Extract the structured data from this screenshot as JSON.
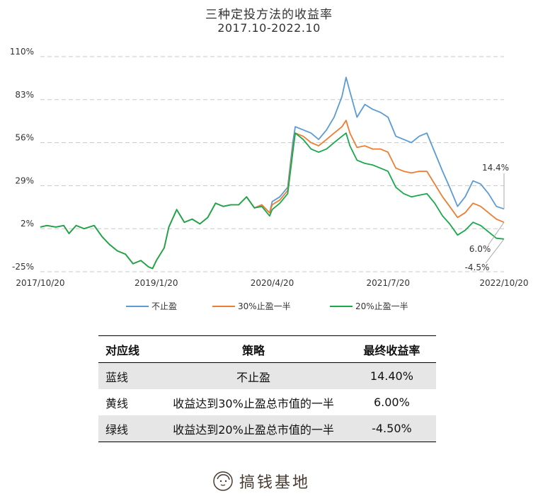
{
  "title": "三种定投方法的收益率",
  "subtitle": "2017.10-2022.10",
  "chart_data": {
    "type": "line",
    "ylim": [
      -25,
      110
    ],
    "yticks": [
      "110%",
      "83%",
      "56%",
      "29%",
      "2%",
      "-25%"
    ],
    "ytick_values": [
      110,
      83,
      56,
      29,
      2,
      -25
    ],
    "xticks": [
      "2017/10/20",
      "2019/1/20",
      "2020/4/20",
      "2021/7/20",
      "2022/10/20"
    ],
    "x_range": [
      "2017-10-20",
      "2022-10-20"
    ],
    "grid": "horizontal dashed",
    "legend_position": "bottom",
    "series": [
      {
        "name": "不止盈",
        "color": "#5b9bd5",
        "points": [
          [
            "2017-10-20",
            3
          ],
          [
            "2017-11-15",
            4
          ],
          [
            "2017-12-20",
            3
          ],
          [
            "2018-01-20",
            4
          ],
          [
            "2018-02-10",
            -1
          ],
          [
            "2018-03-10",
            4
          ],
          [
            "2018-04-10",
            2
          ],
          [
            "2018-05-20",
            4
          ],
          [
            "2018-06-20",
            -3
          ],
          [
            "2018-07-20",
            -8
          ],
          [
            "2018-08-20",
            -12
          ],
          [
            "2018-09-20",
            -14
          ],
          [
            "2018-10-20",
            -20
          ],
          [
            "2018-11-20",
            -18
          ],
          [
            "2018-12-20",
            -22
          ],
          [
            "2019-01-05",
            -23
          ],
          [
            "2019-01-20",
            -18
          ],
          [
            "2019-02-20",
            -10
          ],
          [
            "2019-03-10",
            3
          ],
          [
            "2019-04-10",
            14
          ],
          [
            "2019-05-10",
            6
          ],
          [
            "2019-06-10",
            8
          ],
          [
            "2019-07-10",
            5
          ],
          [
            "2019-08-10",
            9
          ],
          [
            "2019-09-10",
            18
          ],
          [
            "2019-10-10",
            16
          ],
          [
            "2019-11-10",
            17
          ],
          [
            "2019-12-10",
            17
          ],
          [
            "2020-01-10",
            22
          ],
          [
            "2020-02-10",
            15
          ],
          [
            "2020-03-10",
            17
          ],
          [
            "2020-04-10",
            12
          ],
          [
            "2020-04-20",
            19
          ],
          [
            "2020-05-20",
            22
          ],
          [
            "2020-06-20",
            28
          ],
          [
            "2020-07-10",
            56
          ],
          [
            "2020-07-20",
            66
          ],
          [
            "2020-08-20",
            64
          ],
          [
            "2020-09-20",
            62
          ],
          [
            "2020-10-20",
            58
          ],
          [
            "2020-11-20",
            64
          ],
          [
            "2020-12-20",
            72
          ],
          [
            "2021-01-20",
            85
          ],
          [
            "2021-02-05",
            97
          ],
          [
            "2021-02-20",
            88
          ],
          [
            "2021-03-20",
            72
          ],
          [
            "2021-04-20",
            80
          ],
          [
            "2021-05-20",
            77
          ],
          [
            "2021-06-20",
            75
          ],
          [
            "2021-07-20",
            72
          ],
          [
            "2021-08-20",
            60
          ],
          [
            "2021-09-20",
            58
          ],
          [
            "2021-10-20",
            56
          ],
          [
            "2021-11-20",
            60
          ],
          [
            "2021-12-20",
            62
          ],
          [
            "2022-01-20",
            50
          ],
          [
            "2022-02-20",
            38
          ],
          [
            "2022-03-20",
            28
          ],
          [
            "2022-04-20",
            16
          ],
          [
            "2022-05-20",
            22
          ],
          [
            "2022-06-20",
            32
          ],
          [
            "2022-07-20",
            30
          ],
          [
            "2022-08-20",
            24
          ],
          [
            "2022-09-20",
            16
          ],
          [
            "2022-10-20",
            14.4
          ]
        ]
      },
      {
        "name": "30%止盈一半",
        "color": "#ed7d31",
        "points": [
          [
            "2017-10-20",
            3
          ],
          [
            "2017-11-15",
            4
          ],
          [
            "2017-12-20",
            3
          ],
          [
            "2018-01-20",
            4
          ],
          [
            "2018-02-10",
            -1
          ],
          [
            "2018-03-10",
            4
          ],
          [
            "2018-04-10",
            2
          ],
          [
            "2018-05-20",
            4
          ],
          [
            "2018-06-20",
            -3
          ],
          [
            "2018-07-20",
            -8
          ],
          [
            "2018-08-20",
            -12
          ],
          [
            "2018-09-20",
            -14
          ],
          [
            "2018-10-20",
            -20
          ],
          [
            "2018-11-20",
            -18
          ],
          [
            "2018-12-20",
            -22
          ],
          [
            "2019-01-05",
            -23
          ],
          [
            "2019-01-20",
            -18
          ],
          [
            "2019-02-20",
            -10
          ],
          [
            "2019-03-10",
            3
          ],
          [
            "2019-04-10",
            14
          ],
          [
            "2019-05-10",
            6
          ],
          [
            "2019-06-10",
            8
          ],
          [
            "2019-07-10",
            5
          ],
          [
            "2019-08-10",
            9
          ],
          [
            "2019-09-10",
            18
          ],
          [
            "2019-10-10",
            16
          ],
          [
            "2019-11-10",
            17
          ],
          [
            "2019-12-10",
            17
          ],
          [
            "2020-01-10",
            22
          ],
          [
            "2020-02-10",
            15
          ],
          [
            "2020-03-10",
            17
          ],
          [
            "2020-04-10",
            12
          ],
          [
            "2020-04-20",
            17
          ],
          [
            "2020-05-20",
            20
          ],
          [
            "2020-06-20",
            26
          ],
          [
            "2020-07-10",
            52
          ],
          [
            "2020-07-20",
            62
          ],
          [
            "2020-08-20",
            60
          ],
          [
            "2020-09-20",
            56
          ],
          [
            "2020-10-20",
            54
          ],
          [
            "2020-11-20",
            58
          ],
          [
            "2020-12-20",
            62
          ],
          [
            "2021-01-20",
            66
          ],
          [
            "2021-02-05",
            70
          ],
          [
            "2021-02-20",
            62
          ],
          [
            "2021-03-20",
            53
          ],
          [
            "2021-04-20",
            54
          ],
          [
            "2021-05-20",
            52
          ],
          [
            "2021-06-20",
            52
          ],
          [
            "2021-07-20",
            50
          ],
          [
            "2021-08-20",
            40
          ],
          [
            "2021-09-20",
            38
          ],
          [
            "2021-10-20",
            37
          ],
          [
            "2021-11-20",
            38
          ],
          [
            "2021-12-20",
            38
          ],
          [
            "2022-01-20",
            30
          ],
          [
            "2022-02-20",
            22
          ],
          [
            "2022-03-20",
            16
          ],
          [
            "2022-04-20",
            9
          ],
          [
            "2022-05-20",
            12
          ],
          [
            "2022-06-20",
            18
          ],
          [
            "2022-07-20",
            16
          ],
          [
            "2022-08-20",
            12
          ],
          [
            "2022-09-20",
            8
          ],
          [
            "2022-10-20",
            6
          ]
        ]
      },
      {
        "name": "20%止盈一半",
        "color": "#18a84a",
        "points": [
          [
            "2017-10-20",
            3
          ],
          [
            "2017-11-15",
            4
          ],
          [
            "2017-12-20",
            3
          ],
          [
            "2018-01-20",
            4
          ],
          [
            "2018-02-10",
            -1
          ],
          [
            "2018-03-10",
            4
          ],
          [
            "2018-04-10",
            2
          ],
          [
            "2018-05-20",
            4
          ],
          [
            "2018-06-20",
            -3
          ],
          [
            "2018-07-20",
            -8
          ],
          [
            "2018-08-20",
            -12
          ],
          [
            "2018-09-20",
            -14
          ],
          [
            "2018-10-20",
            -20
          ],
          [
            "2018-11-20",
            -18
          ],
          [
            "2018-12-20",
            -22
          ],
          [
            "2019-01-05",
            -23
          ],
          [
            "2019-01-20",
            -18
          ],
          [
            "2019-02-20",
            -10
          ],
          [
            "2019-03-10",
            3
          ],
          [
            "2019-04-10",
            14
          ],
          [
            "2019-05-10",
            6
          ],
          [
            "2019-06-10",
            8
          ],
          [
            "2019-07-10",
            5
          ],
          [
            "2019-08-10",
            9
          ],
          [
            "2019-09-10",
            18
          ],
          [
            "2019-10-10",
            16
          ],
          [
            "2019-11-10",
            17
          ],
          [
            "2019-12-10",
            17
          ],
          [
            "2020-01-10",
            22
          ],
          [
            "2020-02-10",
            15
          ],
          [
            "2020-03-10",
            16
          ],
          [
            "2020-04-10",
            10
          ],
          [
            "2020-04-20",
            14
          ],
          [
            "2020-05-20",
            18
          ],
          [
            "2020-06-20",
            24
          ],
          [
            "2020-07-10",
            50
          ],
          [
            "2020-07-20",
            62
          ],
          [
            "2020-08-20",
            58
          ],
          [
            "2020-09-20",
            52
          ],
          [
            "2020-10-20",
            50
          ],
          [
            "2020-11-20",
            52
          ],
          [
            "2020-12-20",
            56
          ],
          [
            "2021-01-20",
            60
          ],
          [
            "2021-02-05",
            62
          ],
          [
            "2021-02-20",
            54
          ],
          [
            "2021-03-20",
            45
          ],
          [
            "2021-04-20",
            43
          ],
          [
            "2021-05-20",
            42
          ],
          [
            "2021-06-20",
            40
          ],
          [
            "2021-07-20",
            38
          ],
          [
            "2021-08-20",
            28
          ],
          [
            "2021-09-20",
            24
          ],
          [
            "2021-10-20",
            22
          ],
          [
            "2021-11-20",
            23
          ],
          [
            "2021-12-20",
            24
          ],
          [
            "2022-01-20",
            18
          ],
          [
            "2022-02-20",
            10
          ],
          [
            "2022-03-20",
            5
          ],
          [
            "2022-04-20",
            -2
          ],
          [
            "2022-05-20",
            1
          ],
          [
            "2022-06-20",
            6
          ],
          [
            "2022-07-20",
            4
          ],
          [
            "2022-08-20",
            0
          ],
          [
            "2022-09-20",
            -4
          ],
          [
            "2022-10-20",
            -4.5
          ]
        ]
      }
    ],
    "end_labels": [
      {
        "series": "不止盈",
        "text": "14.4%"
      },
      {
        "series": "30%止盈一半",
        "text": "6.0%"
      },
      {
        "series": "20%止盈一半",
        "text": "-4.5%"
      }
    ]
  },
  "table": {
    "headers": [
      "对应线",
      "策略",
      "最终收益率"
    ],
    "rows": [
      {
        "line": "蓝线",
        "strategy": "不止盈",
        "return": "14.40%"
      },
      {
        "line": "黄线",
        "strategy": "收益达到30%止盈总市值的一半",
        "return": "6.00%"
      },
      {
        "line": "绿线",
        "strategy": "收益达到20%止盈总市值的一半",
        "return": "-4.50%"
      }
    ]
  },
  "brand": {
    "text": "搞钱基地",
    "icon": "girl-face-logo-icon",
    "color": "#4a3b30"
  }
}
